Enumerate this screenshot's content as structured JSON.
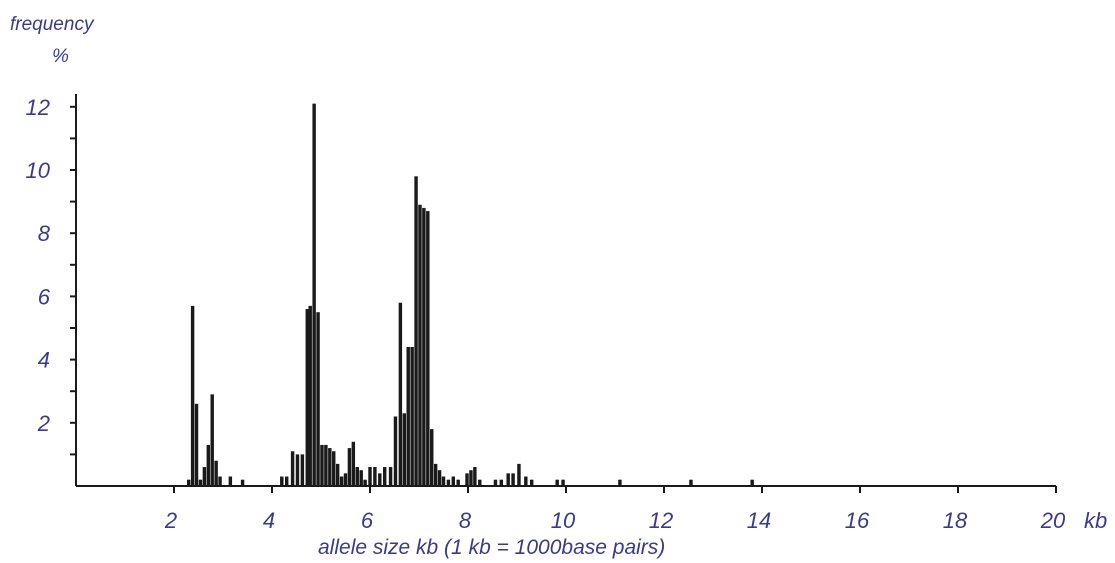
{
  "chart_data": {
    "type": "bar",
    "ylabel_line1": "frequency",
    "ylabel_line2": "%",
    "xlabel": "allele size kb (1 kb = 1000base pairs)",
    "x_unit": "kb",
    "xlim": [
      0,
      20
    ],
    "ylim": [
      0,
      12.5
    ],
    "x_ticks": [
      "2",
      "4",
      "6",
      "8",
      "10",
      "12",
      "14",
      "16",
      "18",
      "20"
    ],
    "y_ticks": [
      "2",
      "4",
      "6",
      "8",
      "10",
      "12"
    ],
    "bar_width": 0.07,
    "grid": false,
    "series": [
      {
        "x": [
          2.3,
          2.38,
          2.46,
          2.54,
          2.62,
          2.7,
          2.78,
          2.86,
          2.94,
          3.15,
          3.4,
          4.2,
          4.3,
          4.42,
          4.52,
          4.62,
          4.72,
          4.78,
          4.86,
          4.94,
          5.02,
          5.1,
          5.18,
          5.26,
          5.34,
          5.42,
          5.5,
          5.58,
          5.66,
          5.74,
          5.82,
          5.9,
          6.0,
          6.1,
          6.2,
          6.3,
          6.42,
          6.52,
          6.62,
          6.7,
          6.78,
          6.86,
          6.94,
          7.02,
          7.1,
          7.18,
          7.26,
          7.34,
          7.42,
          7.5,
          7.6,
          7.7,
          7.8,
          7.98,
          8.06,
          8.14,
          8.24,
          8.56,
          8.68,
          8.82,
          8.92,
          9.04,
          9.18,
          9.3,
          9.82,
          9.94,
          11.1,
          12.55,
          13.8
        ],
        "values": [
          0.2,
          5.7,
          2.6,
          0.2,
          0.6,
          1.3,
          2.9,
          0.8,
          0.3,
          0.3,
          0.2,
          0.3,
          0.3,
          1.1,
          1.0,
          1.0,
          5.6,
          5.7,
          12.1,
          5.5,
          1.3,
          1.3,
          1.2,
          1.1,
          0.7,
          0.3,
          0.4,
          1.2,
          1.4,
          0.6,
          0.5,
          0.2,
          0.6,
          0.6,
          0.4,
          0.6,
          0.6,
          2.2,
          5.8,
          2.3,
          4.4,
          4.4,
          9.8,
          8.9,
          8.8,
          8.7,
          1.8,
          0.7,
          0.5,
          0.3,
          0.2,
          0.3,
          0.2,
          0.4,
          0.5,
          0.6,
          0.2,
          0.2,
          0.2,
          0.4,
          0.4,
          0.7,
          0.3,
          0.2,
          0.2,
          0.2,
          0.2,
          0.2,
          0.2
        ],
        "color": "#1a1a1a"
      }
    ]
  }
}
